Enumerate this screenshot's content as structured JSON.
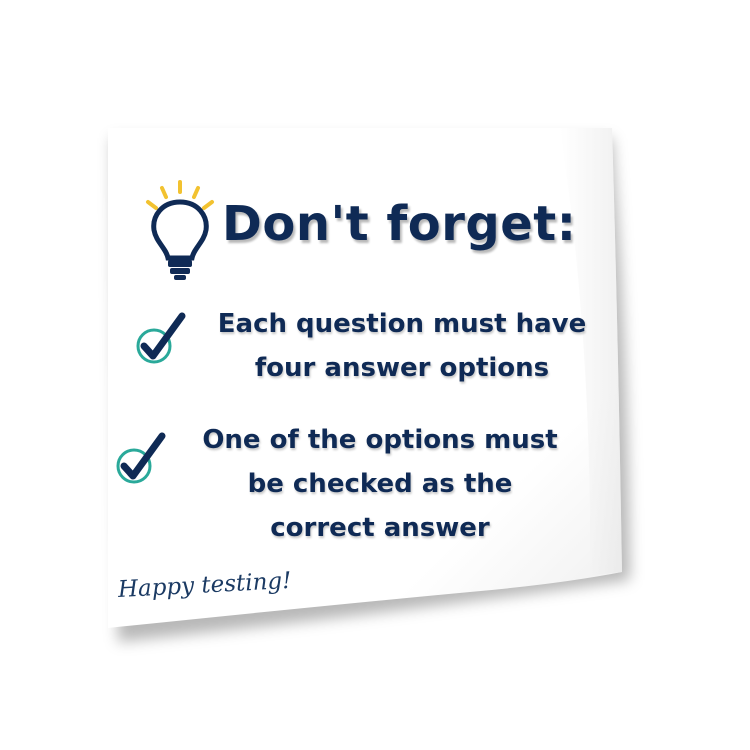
{
  "note": {
    "title": "Don't forget:",
    "items": [
      {
        "line1": "Each question must have",
        "line2": "four answer options"
      },
      {
        "line1": "One of the options must",
        "line2": "be checked as the",
        "line3": "correct answer"
      }
    ],
    "signoff": "Happy testing!"
  },
  "icons": {
    "bulb": "lightbulb-icon",
    "check": "checkmark-circle-icon"
  },
  "colors": {
    "text": "#0f2a55",
    "bulb_rays": "#f2c230",
    "check_circle": "#2aa99a",
    "check_mark": "#0f2a55"
  }
}
